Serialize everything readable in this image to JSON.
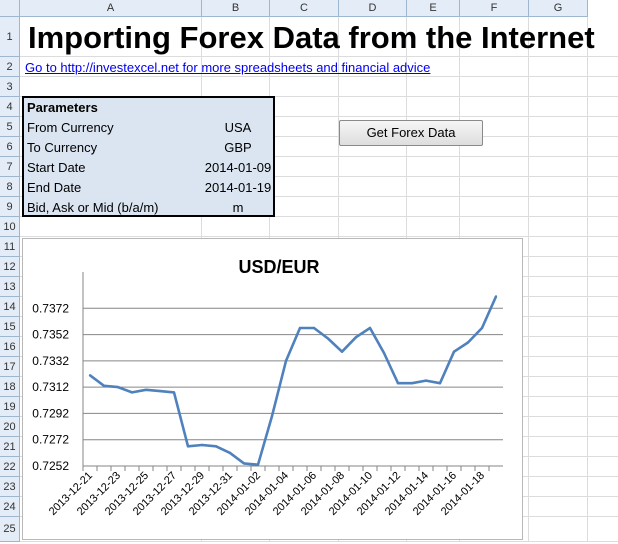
{
  "sheet": {
    "columns": [
      "A",
      "B",
      "C",
      "D",
      "E",
      "F",
      "G"
    ],
    "rows": [
      "1",
      "2",
      "3",
      "4",
      "5",
      "6",
      "7",
      "8",
      "9",
      "10",
      "11",
      "12",
      "13",
      "14",
      "15",
      "16",
      "17",
      "18",
      "19",
      "20",
      "21",
      "22",
      "23",
      "24",
      "25"
    ]
  },
  "title": "Importing Forex Data from the Internet",
  "link": "Go to http://investexcel.net for more spreadsheets and financial advice",
  "parameters": {
    "header": "Parameters",
    "rows": [
      {
        "label": "From Currency",
        "value": "USA"
      },
      {
        "label": "To Currency",
        "value": "GBP"
      },
      {
        "label": "Start Date",
        "value": "2014-01-09"
      },
      {
        "label": "End Date",
        "value": "2014-01-19"
      },
      {
        "label": "Bid, Ask or Mid (b/a/m)",
        "value": "m"
      }
    ]
  },
  "button": {
    "label": "Get Forex Data"
  },
  "colors": {
    "line": "#4f81bd",
    "gridline": "#868686",
    "param_fill": "#dbe5f1"
  },
  "chart_data": {
    "type": "line",
    "title": "USD/EUR",
    "xlabel": "",
    "ylabel": "",
    "ylim": [
      0.7252,
      0.7392
    ],
    "yticks": [
      "0.7252",
      "0.7272",
      "0.7292",
      "0.7312",
      "0.7332",
      "0.7352",
      "0.7372"
    ],
    "ytick_values": [
      0.7252,
      0.7272,
      0.7292,
      0.7312,
      0.7332,
      0.7352,
      0.7372
    ],
    "xtick_labels": [
      "2013-12-21",
      "2013-12-23",
      "2013-12-25",
      "2013-12-27",
      "2013-12-29",
      "2013-12-31",
      "2014-01-02",
      "2014-01-04",
      "2014-01-06",
      "2014-01-08",
      "2014-01-10",
      "2014-01-12",
      "2014-01-14",
      "2014-01-16",
      "2014-01-18"
    ],
    "grid": true,
    "series": [
      {
        "x": [
          "2013-12-21",
          "2013-12-22",
          "2013-12-23",
          "2013-12-24",
          "2013-12-25",
          "2013-12-26",
          "2013-12-27",
          "2013-12-28",
          "2013-12-29",
          "2013-12-30",
          "2013-12-31",
          "2014-01-01",
          "2014-01-02",
          "2014-01-03",
          "2014-01-04",
          "2014-01-05",
          "2014-01-06",
          "2014-01-07",
          "2014-01-08",
          "2014-01-09",
          "2014-01-10",
          "2014-01-11",
          "2014-01-12",
          "2014-01-13",
          "2014-01-14",
          "2014-01-15",
          "2014-01-16",
          "2014-01-17",
          "2014-01-18",
          "2014-01-19"
        ],
        "values": [
          0.7321,
          0.7313,
          0.7312,
          0.7308,
          0.731,
          0.7309,
          0.7308,
          0.7267,
          0.7268,
          0.7267,
          0.7262,
          0.7254,
          0.7253,
          0.729,
          0.7332,
          0.7357,
          0.7357,
          0.7349,
          0.7339,
          0.735,
          0.7357,
          0.7338,
          0.7315,
          0.7315,
          0.7317,
          0.7315,
          0.7339,
          0.7346,
          0.7357,
          0.7381
        ]
      }
    ]
  }
}
